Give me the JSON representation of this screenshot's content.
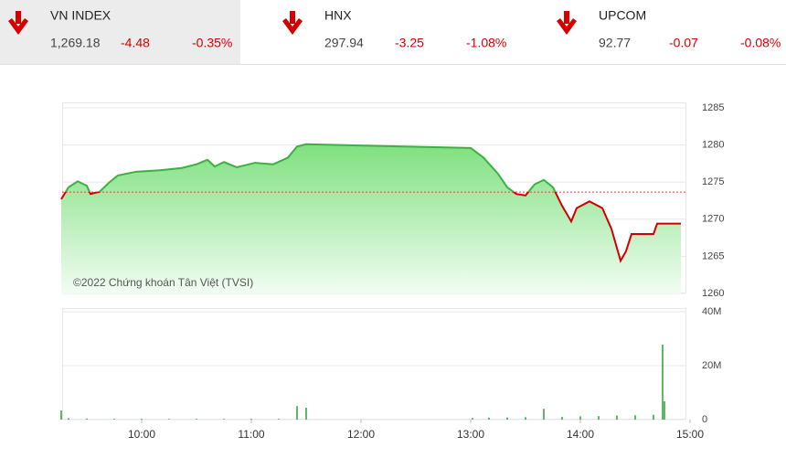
{
  "indices": [
    {
      "name": "VN INDEX",
      "value": "1,269.18",
      "change": "-4.48",
      "percent": "-0.35%"
    },
    {
      "name": "HNX",
      "value": "297.94",
      "change": "-3.25",
      "percent": "-1.08%"
    },
    {
      "name": "UPCOM",
      "value": "92.77",
      "change": "-0.07",
      "percent": "-0.08%"
    }
  ],
  "watermark": "©2022 Chứng khoán Tân Việt (TVSI)",
  "chart_data": [
    {
      "type": "area",
      "x": [
        "09:16",
        "09:20",
        "09:25",
        "09:30",
        "09:32",
        "09:37",
        "09:42",
        "09:47",
        "09:57",
        "10:10",
        "10:22",
        "10:30",
        "10:36",
        "10:40",
        "10:45",
        "10:52",
        "11:02",
        "11:12",
        "11:20",
        "11:25",
        "11:30",
        "13:00",
        "13:07",
        "13:15",
        "13:20",
        "13:25",
        "13:30",
        "13:35",
        "13:40",
        "13:45",
        "13:50",
        "13:55",
        "13:58",
        "14:05",
        "14:12",
        "14:17",
        "14:22",
        "14:25",
        "14:28",
        "14:40",
        "14:42",
        "14:55"
      ],
      "series": [
        {
          "color": "#3cb043",
          "values": [
            1272.7,
            1274.3,
            1275.1,
            1274.5,
            1273.4,
            1273.7,
            1274.9,
            1275.9,
            1276.4,
            1276.6,
            1276.9,
            1277.4,
            1278.0,
            1277.1,
            1277.7,
            1277.0,
            1277.6,
            1277.4,
            1278.3,
            1279.8,
            1280.1,
            1279.6,
            1278.3,
            1276.1,
            1274.3,
            1273.4,
            1273.2,
            1274.7,
            1275.3,
            1274.3,
            1271.8,
            1269.7,
            1271.5,
            1272.4,
            1271.5,
            1268.7,
            1264.4,
            1265.7,
            1268.0,
            1268.0,
            1269.4,
            1269.4
          ]
        }
      ],
      "below_color": "#d00000",
      "reference": 1273.66,
      "reference_color": "#e04040",
      "xlim": [
        "09:15",
        "15:00"
      ],
      "ylim": [
        1260,
        1285
      ],
      "yticks": [
        1260,
        1265,
        1270,
        1275,
        1280,
        1285
      ],
      "grid": true
    },
    {
      "type": "bar",
      "x": [
        "09:16",
        "09:20",
        "09:30",
        "09:45",
        "10:00",
        "10:15",
        "10:30",
        "10:45",
        "11:00",
        "11:15",
        "11:25",
        "11:30",
        "13:01",
        "13:10",
        "13:20",
        "13:30",
        "13:40",
        "13:50",
        "14:00",
        "14:10",
        "14:20",
        "14:30",
        "14:40",
        "14:45",
        "14:46"
      ],
      "series": [
        {
          "color": "#2e9e3a",
          "values": [
            3400000,
            500000,
            400000,
            300000,
            300000,
            250000,
            300000,
            250000,
            300000,
            300000,
            5000000,
            4400000,
            600000,
            700000,
            800000,
            900000,
            4000000,
            1000000,
            1200000,
            1300000,
            1500000,
            1600000,
            1800000,
            27800000,
            6800000
          ]
        }
      ],
      "xlim": [
        "09:15",
        "15:00"
      ],
      "xticks": [
        "10:00",
        "11:00",
        "12:00",
        "13:00",
        "14:00",
        "15:00"
      ],
      "ylim": [
        0,
        40000000
      ],
      "yticks": [
        0,
        {
          "value": 20000000,
          "label": "20M"
        },
        {
          "value": 40000000,
          "label": "40M"
        }
      ],
      "grid": true
    }
  ]
}
